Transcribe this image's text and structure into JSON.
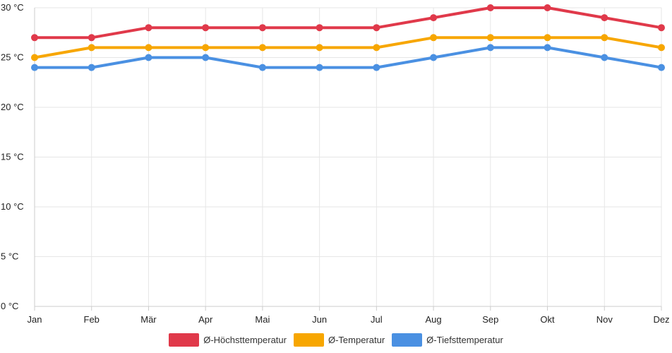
{
  "chart_data": {
    "type": "line",
    "categories": [
      "Jan",
      "Feb",
      "Mär",
      "Apr",
      "Mai",
      "Jun",
      "Jul",
      "Aug",
      "Sep",
      "Okt",
      "Nov",
      "Dez"
    ],
    "series": [
      {
        "name": "Ø-Höchsttemperatur",
        "color": "#e0394a",
        "values": [
          27,
          27,
          28,
          28,
          28,
          28,
          28,
          29,
          30,
          30,
          29,
          28
        ]
      },
      {
        "name": "Ø-Temperatur",
        "color": "#f7a600",
        "values": [
          25,
          26,
          26,
          26,
          26,
          26,
          26,
          27,
          27,
          27,
          27,
          26
        ]
      },
      {
        "name": "Ø-Tiefsttemperatur",
        "color": "#4a90e2",
        "values": [
          24,
          24,
          25,
          25,
          24,
          24,
          24,
          25,
          26,
          26,
          25,
          24
        ]
      }
    ],
    "y_ticks": [
      "0 °C",
      "5 °C",
      "10 °C",
      "15 °C",
      "20 °C",
      "25 °C",
      "30 °C"
    ],
    "ylim": [
      0,
      30
    ],
    "grid": true,
    "legend_position": "bottom"
  }
}
